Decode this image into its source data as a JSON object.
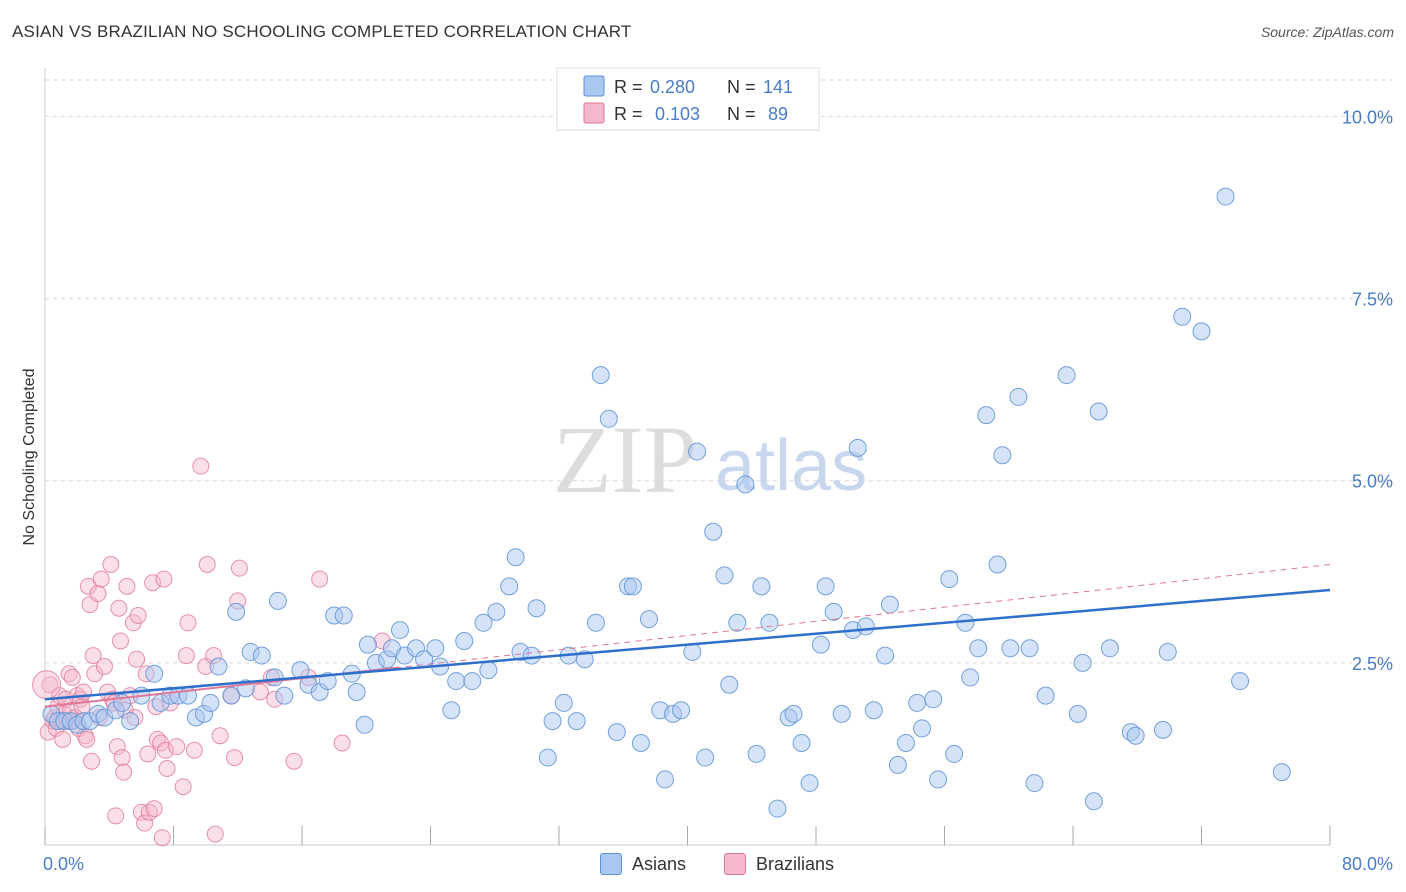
{
  "title": "ASIAN VS BRAZILIAN NO SCHOOLING COMPLETED CORRELATION CHART",
  "source": "Source: ZipAtlas.com",
  "watermark": {
    "zip": "ZIP",
    "atlas": "atlas"
  },
  "colors": {
    "asian_fill": "#a9c7ef",
    "asian_stroke": "#5e92d6",
    "asian_line": "#2f6fcc",
    "brazil_fill": "#f5b8cb",
    "brazil_stroke": "#e07898",
    "brazil_line": "#e07898",
    "axis_text": "#4a7cc9",
    "grid": "#d9d9d9"
  },
  "legend_top": [
    {
      "r_label": "R = ",
      "r_value": "0.280",
      "n_label": "N = ",
      "n_value": "141",
      "series": "Asians"
    },
    {
      "r_label": "R = ",
      "r_value": "0.103",
      "n_label": "N = ",
      "n_value": "89",
      "series": "Brazilians"
    }
  ],
  "chart_data": {
    "type": "scatter",
    "title": "ASIAN VS BRAZILIAN NO SCHOOLING COMPLETED CORRELATION CHART",
    "xlabel": "",
    "ylabel": "No Schooling Completed",
    "xlim": [
      0,
      80
    ],
    "ylim": [
      0,
      10.5
    ],
    "x_tick_labels": [
      "0.0%",
      "80.0%"
    ],
    "y_ticks": [
      2.5,
      5.0,
      7.5,
      10.0
    ],
    "y_tick_labels": [
      "2.5%",
      "5.0%",
      "7.5%",
      "10.0%"
    ],
    "grid": true,
    "legend_position": "top-center and bottom",
    "series": [
      {
        "name": "Asians",
        "trendline": {
          "x": [
            0,
            80
          ],
          "y": [
            2.0,
            3.5
          ],
          "style": "solid"
        },
        "points": [
          [
            0.4,
            1.8
          ],
          [
            0.8,
            1.7
          ],
          [
            1.2,
            1.7
          ],
          [
            1.6,
            1.7
          ],
          [
            2.0,
            1.65
          ],
          [
            2.4,
            1.7
          ],
          [
            2.8,
            1.7
          ],
          [
            3.3,
            1.8
          ],
          [
            3.7,
            1.75
          ],
          [
            4.4,
            1.85
          ],
          [
            4.8,
            1.95
          ],
          [
            5.3,
            1.7
          ],
          [
            6.0,
            2.05
          ],
          [
            6.8,
            2.35
          ],
          [
            7.2,
            1.95
          ],
          [
            7.8,
            2.05
          ],
          [
            8.3,
            2.05
          ],
          [
            8.9,
            2.05
          ],
          [
            9.4,
            1.75
          ],
          [
            9.9,
            1.8
          ],
          [
            10.3,
            1.95
          ],
          [
            10.8,
            2.45
          ],
          [
            11.6,
            2.05
          ],
          [
            11.9,
            3.2
          ],
          [
            12.5,
            2.15
          ],
          [
            12.8,
            2.65
          ],
          [
            13.5,
            2.6
          ],
          [
            14.3,
            2.3
          ],
          [
            14.5,
            3.35
          ],
          [
            14.9,
            2.05
          ],
          [
            15.9,
            2.4
          ],
          [
            16.4,
            2.2
          ],
          [
            17.1,
            2.1
          ],
          [
            17.6,
            2.25
          ],
          [
            18.0,
            3.15
          ],
          [
            18.6,
            3.15
          ],
          [
            19.1,
            2.35
          ],
          [
            19.4,
            2.1
          ],
          [
            19.9,
            1.65
          ],
          [
            20.1,
            2.75
          ],
          [
            20.6,
            2.5
          ],
          [
            21.3,
            2.55
          ],
          [
            21.6,
            2.7
          ],
          [
            22.1,
            2.95
          ],
          [
            22.4,
            2.6
          ],
          [
            23.1,
            2.7
          ],
          [
            23.6,
            2.55
          ],
          [
            24.3,
            2.7
          ],
          [
            24.6,
            2.45
          ],
          [
            25.3,
            1.85
          ],
          [
            25.6,
            2.25
          ],
          [
            26.1,
            2.8
          ],
          [
            26.6,
            2.25
          ],
          [
            27.3,
            3.05
          ],
          [
            27.6,
            2.4
          ],
          [
            28.1,
            3.2
          ],
          [
            28.9,
            3.55
          ],
          [
            29.3,
            3.95
          ],
          [
            29.6,
            2.65
          ],
          [
            30.3,
            2.6
          ],
          [
            30.6,
            3.25
          ],
          [
            31.3,
            1.2
          ],
          [
            31.6,
            1.7
          ],
          [
            32.3,
            1.95
          ],
          [
            32.6,
            2.6
          ],
          [
            33.1,
            1.7
          ],
          [
            33.6,
            2.55
          ],
          [
            34.3,
            3.05
          ],
          [
            34.6,
            6.45
          ],
          [
            35.1,
            5.85
          ],
          [
            35.6,
            1.55
          ],
          [
            36.3,
            3.55
          ],
          [
            36.6,
            3.55
          ],
          [
            37.1,
            1.4
          ],
          [
            37.6,
            3.1
          ],
          [
            38.3,
            1.85
          ],
          [
            38.6,
            0.9
          ],
          [
            39.1,
            1.8
          ],
          [
            39.6,
            1.85
          ],
          [
            40.3,
            2.65
          ],
          [
            40.6,
            5.4
          ],
          [
            41.1,
            1.2
          ],
          [
            41.6,
            4.3
          ],
          [
            42.3,
            3.7
          ],
          [
            42.6,
            2.2
          ],
          [
            43.1,
            3.05
          ],
          [
            43.6,
            4.95
          ],
          [
            44.3,
            1.25
          ],
          [
            44.6,
            3.55
          ],
          [
            45.1,
            3.05
          ],
          [
            45.6,
            0.5
          ],
          [
            46.3,
            1.75
          ],
          [
            46.6,
            1.8
          ],
          [
            47.1,
            1.4
          ],
          [
            47.6,
            0.85
          ],
          [
            48.3,
            2.75
          ],
          [
            48.6,
            3.55
          ],
          [
            49.1,
            3.2
          ],
          [
            49.6,
            1.8
          ],
          [
            50.3,
            2.95
          ],
          [
            50.6,
            5.45
          ],
          [
            51.1,
            3.0
          ],
          [
            51.6,
            1.85
          ],
          [
            52.3,
            2.6
          ],
          [
            52.6,
            3.3
          ],
          [
            53.1,
            1.1
          ],
          [
            53.6,
            1.4
          ],
          [
            54.3,
            1.95
          ],
          [
            54.6,
            1.6
          ],
          [
            55.3,
            2.0
          ],
          [
            55.6,
            0.9
          ],
          [
            56.3,
            3.65
          ],
          [
            56.6,
            1.25
          ],
          [
            57.3,
            3.05
          ],
          [
            57.6,
            2.3
          ],
          [
            58.1,
            2.7
          ],
          [
            58.6,
            5.9
          ],
          [
            59.3,
            3.85
          ],
          [
            59.6,
            5.35
          ],
          [
            60.1,
            2.7
          ],
          [
            60.6,
            6.15
          ],
          [
            61.3,
            2.7
          ],
          [
            61.6,
            0.85
          ],
          [
            62.3,
            2.05
          ],
          [
            63.6,
            6.45
          ],
          [
            64.3,
            1.8
          ],
          [
            64.6,
            2.5
          ],
          [
            65.3,
            0.6
          ],
          [
            65.6,
            5.95
          ],
          [
            66.3,
            2.7
          ],
          [
            67.6,
            1.55
          ],
          [
            67.9,
            1.5
          ],
          [
            69.6,
            1.58
          ],
          [
            69.9,
            2.65
          ],
          [
            70.8,
            7.25
          ],
          [
            72.0,
            7.05
          ],
          [
            73.5,
            8.9
          ],
          [
            74.4,
            2.25
          ],
          [
            77.0,
            1.0
          ]
        ]
      },
      {
        "name": "Brazilians",
        "trendline": {
          "x": [
            0,
            80
          ],
          "y": [
            1.9,
            3.85
          ],
          "style": "dashed",
          "solid_segment_x": [
            0,
            22
          ]
        },
        "points": [
          [
            0.2,
            1.55
          ],
          [
            0.3,
            2.2
          ],
          [
            0.5,
            1.7
          ],
          [
            0.6,
            1.75
          ],
          [
            0.7,
            1.6
          ],
          [
            0.8,
            1.9
          ],
          [
            0.9,
            2.05
          ],
          [
            1.0,
            1.7
          ],
          [
            1.1,
            1.45
          ],
          [
            1.2,
            1.8
          ],
          [
            1.3,
            2.0
          ],
          [
            1.4,
            1.7
          ],
          [
            1.5,
            2.35
          ],
          [
            1.6,
            1.85
          ],
          [
            1.7,
            2.3
          ],
          [
            1.8,
            1.7
          ],
          [
            1.9,
            1.75
          ],
          [
            2.0,
            2.05
          ],
          [
            2.1,
            1.6
          ],
          [
            2.2,
            2.0
          ],
          [
            2.3,
            1.9
          ],
          [
            2.4,
            2.1
          ],
          [
            2.5,
            1.5
          ],
          [
            2.6,
            1.45
          ],
          [
            2.7,
            3.55
          ],
          [
            2.8,
            3.3
          ],
          [
            2.9,
            1.15
          ],
          [
            3.0,
            2.6
          ],
          [
            3.1,
            2.35
          ],
          [
            3.3,
            3.45
          ],
          [
            3.4,
            1.75
          ],
          [
            3.5,
            3.65
          ],
          [
            3.7,
            2.45
          ],
          [
            3.9,
            2.1
          ],
          [
            4.1,
            3.85
          ],
          [
            4.2,
            2.0
          ],
          [
            4.3,
            1.95
          ],
          [
            4.4,
            0.4
          ],
          [
            4.5,
            1.35
          ],
          [
            4.6,
            3.25
          ],
          [
            4.7,
            2.8
          ],
          [
            4.8,
            1.2
          ],
          [
            4.9,
            1.0
          ],
          [
            5.0,
            1.85
          ],
          [
            5.1,
            3.55
          ],
          [
            5.3,
            2.05
          ],
          [
            5.5,
            3.05
          ],
          [
            5.6,
            1.75
          ],
          [
            5.7,
            2.55
          ],
          [
            5.8,
            3.15
          ],
          [
            6.0,
            0.45
          ],
          [
            6.2,
            0.3
          ],
          [
            6.3,
            2.35
          ],
          [
            6.4,
            1.25
          ],
          [
            6.5,
            0.45
          ],
          [
            6.7,
            3.6
          ],
          [
            6.8,
            0.5
          ],
          [
            6.9,
            1.9
          ],
          [
            7.0,
            1.45
          ],
          [
            7.2,
            1.4
          ],
          [
            7.3,
            0.1
          ],
          [
            7.4,
            3.65
          ],
          [
            7.5,
            1.3
          ],
          [
            7.6,
            1.05
          ],
          [
            7.8,
            1.95
          ],
          [
            8.2,
            1.35
          ],
          [
            8.6,
            0.8
          ],
          [
            8.8,
            2.6
          ],
          [
            8.9,
            3.05
          ],
          [
            9.3,
            1.3
          ],
          [
            9.7,
            5.2
          ],
          [
            10.0,
            2.45
          ],
          [
            10.1,
            3.85
          ],
          [
            10.5,
            2.6
          ],
          [
            10.6,
            0.15
          ],
          [
            10.9,
            1.5
          ],
          [
            11.6,
            2.05
          ],
          [
            11.8,
            1.2
          ],
          [
            12.0,
            3.35
          ],
          [
            12.1,
            3.8
          ],
          [
            13.4,
            2.1
          ],
          [
            14.1,
            2.3
          ],
          [
            14.3,
            2.0
          ],
          [
            15.5,
            1.15
          ],
          [
            16.4,
            2.3
          ],
          [
            17.1,
            3.65
          ],
          [
            18.5,
            1.4
          ],
          [
            21.0,
            2.8
          ],
          [
            0.1,
            2.2
          ]
        ]
      }
    ]
  },
  "legend_bottom": [
    {
      "label": "Asians"
    },
    {
      "label": "Brazilians"
    }
  ]
}
